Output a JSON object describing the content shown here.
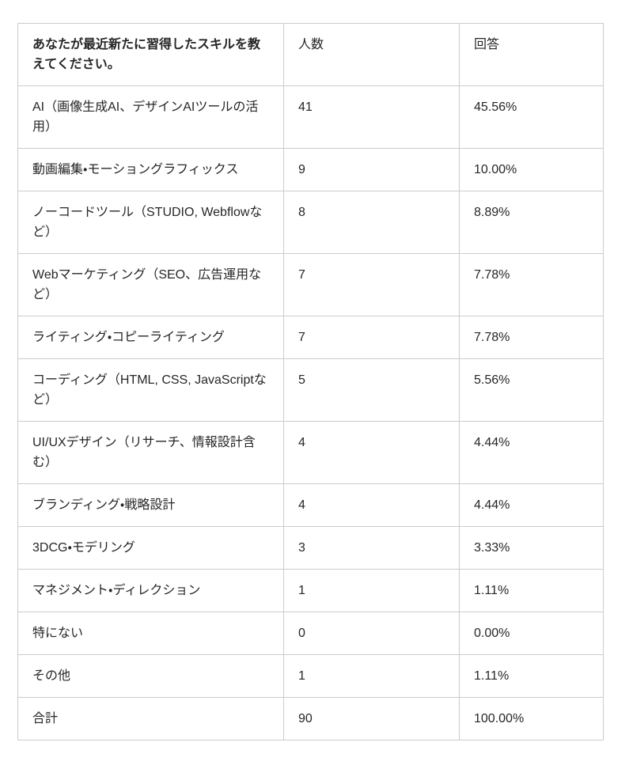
{
  "table": {
    "header": {
      "question": "あなたが最近新たに習得したスキルを教えてください。",
      "count": "人数",
      "answer": "回答"
    },
    "rows": [
      {
        "label": "AI（画像生成AI、デザインAIツールの活用）",
        "count": "41",
        "percent": "45.56%"
      },
      {
        "label": "動画編集・モーショングラフィックス",
        "count": "9",
        "percent": "10.00%"
      },
      {
        "label": "ノーコードツール（STUDIO, Webflowなど）",
        "count": "8",
        "percent": "8.89%"
      },
      {
        "label": "Webマーケティング（SEO、広告運用など）",
        "count": "7",
        "percent": "7.78%"
      },
      {
        "label": "ライティング・コピーライティング",
        "count": "7",
        "percent": "7.78%"
      },
      {
        "label": "コーディング（HTML, CSS, JavaScriptなど）",
        "count": "5",
        "percent": "5.56%"
      },
      {
        "label": "UI/UXデザイン（リサーチ、情報設計含む）",
        "count": "4",
        "percent": "4.44%"
      },
      {
        "label": "ブランディング・戦略設計",
        "count": "4",
        "percent": "4.44%"
      },
      {
        "label": "3DCG・モデリング",
        "count": "3",
        "percent": "3.33%"
      },
      {
        "label": "マネジメント・ディレクション",
        "count": "1",
        "percent": "1.11%"
      },
      {
        "label": "特にない",
        "count": "0",
        "percent": "0.00%"
      },
      {
        "label": "その他",
        "count": "1",
        "percent": "1.11%"
      },
      {
        "label": "合計",
        "count": "90",
        "percent": "100.00%"
      }
    ],
    "colors": {
      "border": "#cccccc",
      "text": "#262626",
      "background": "#ffffff"
    }
  }
}
